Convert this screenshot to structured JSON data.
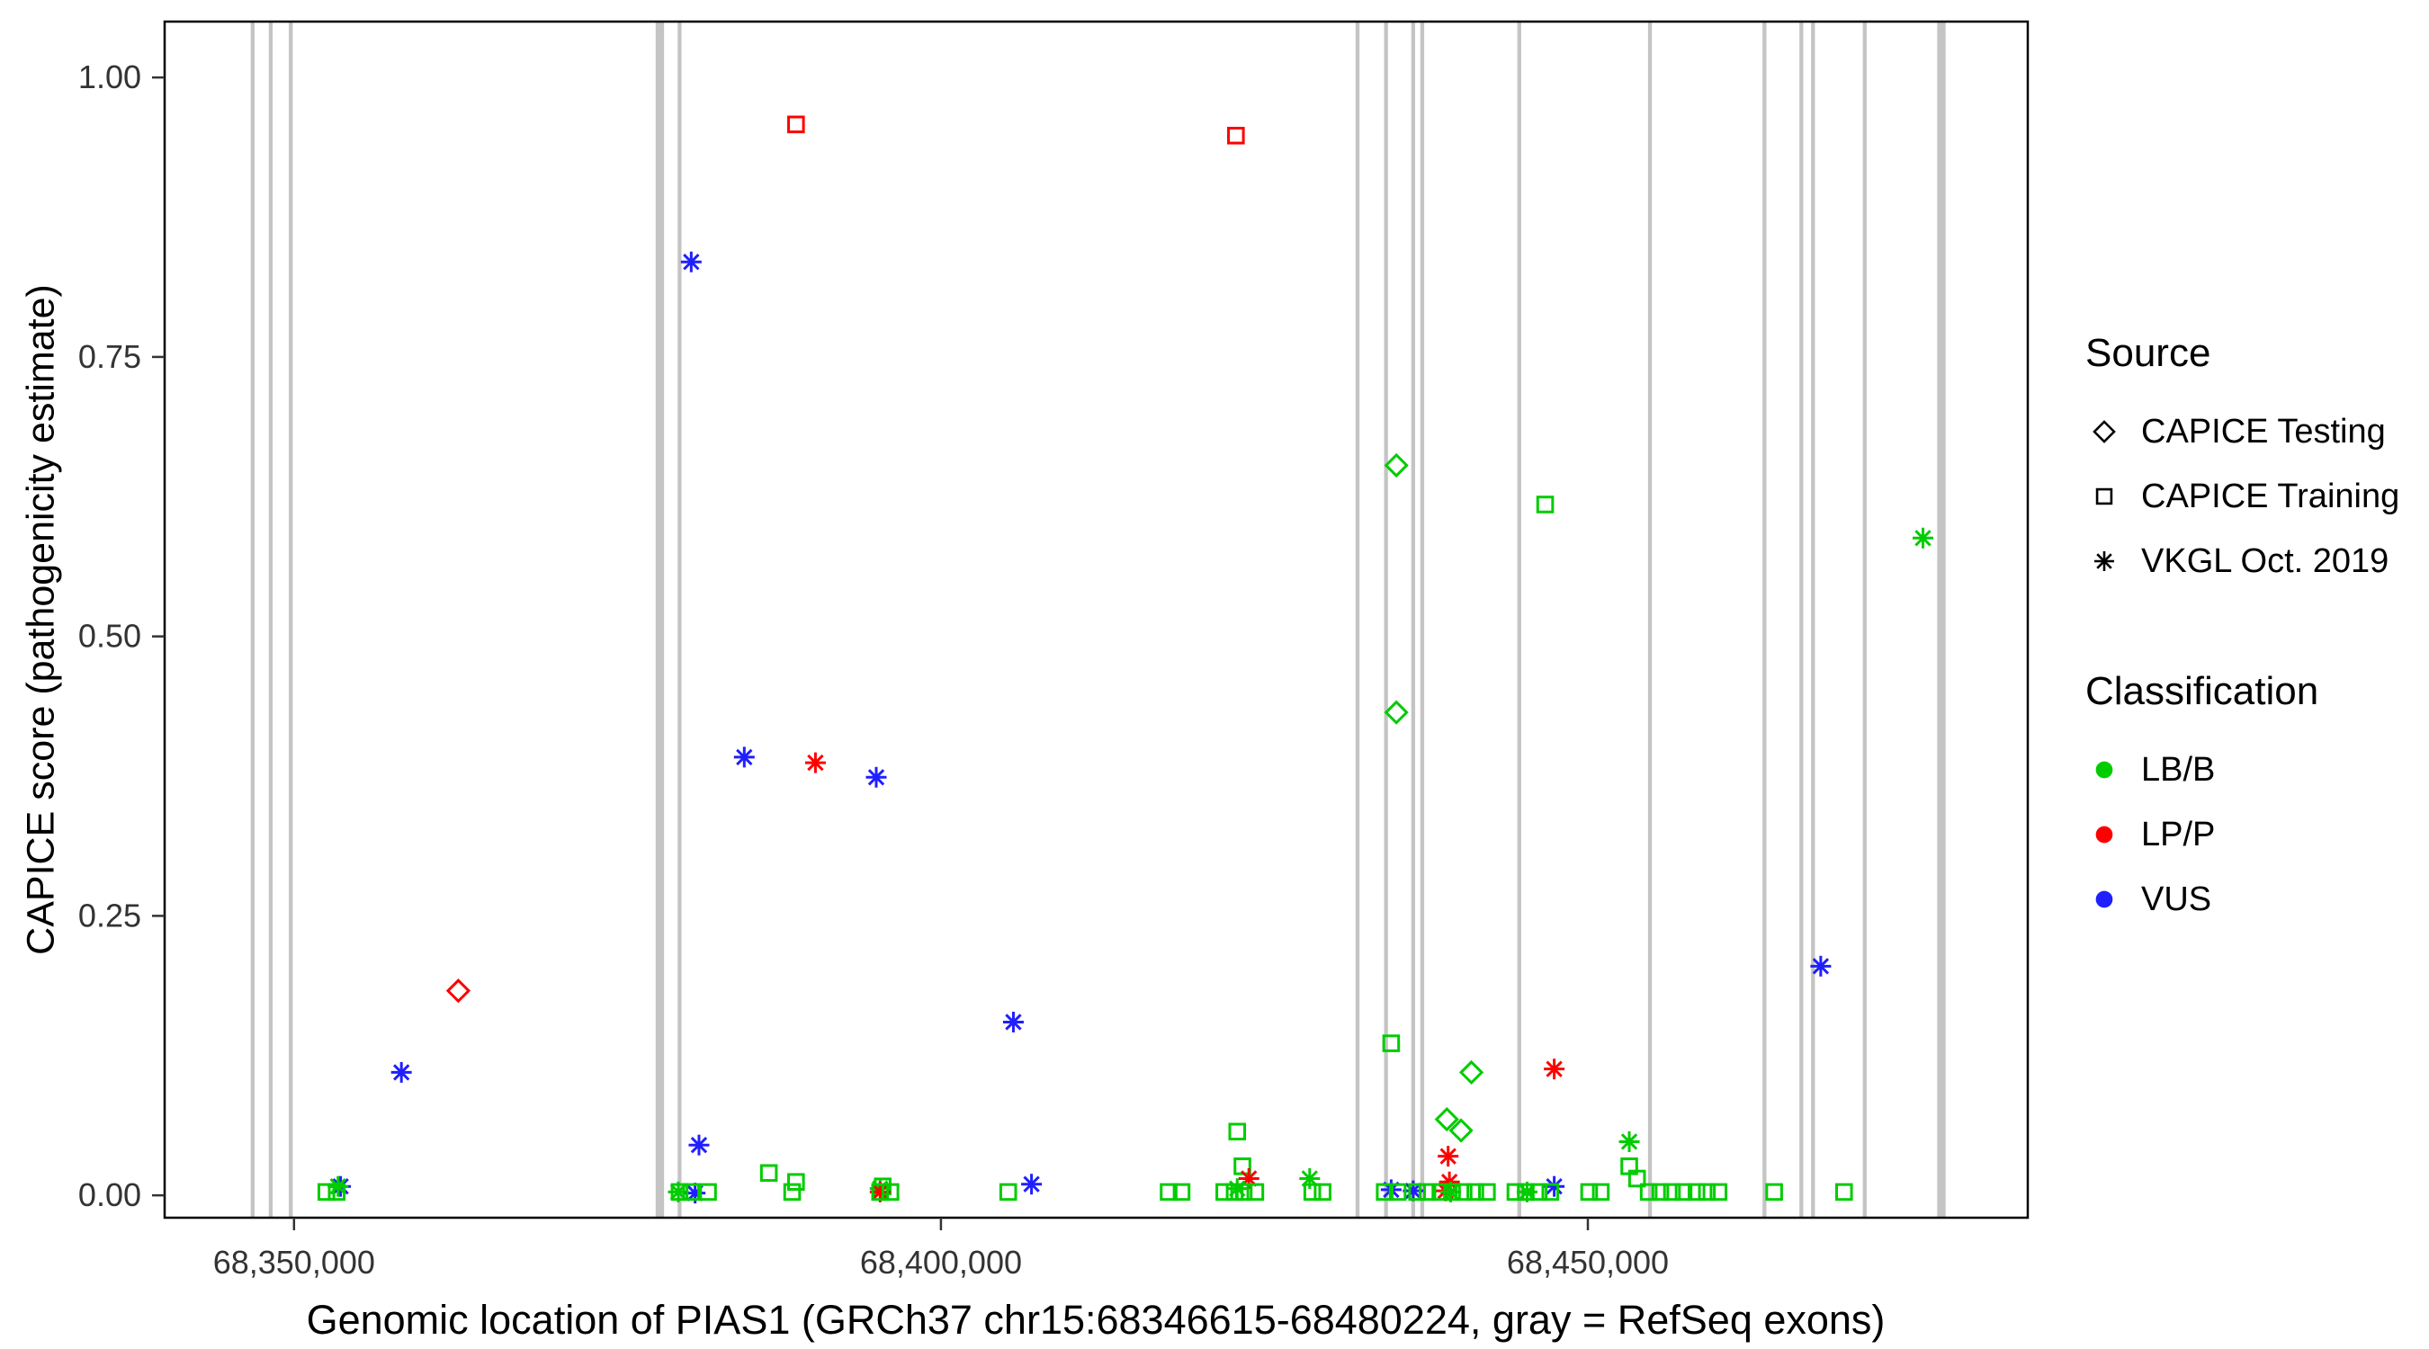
{
  "figure": {
    "background": "#FFFFFF",
    "panel_border_color": "#000000",
    "exon_color": "#C4C4C4",
    "axis_text_color": "#333333",
    "title_color": "#000000"
  },
  "chart_data": {
    "type": "scatter",
    "title": "",
    "xlabel": "Genomic location of PIAS1 (GRCh37 chr15:68346615-68480224, gray = RefSeq exons)",
    "ylabel": "CAPICE score (pathogenicity estimate)",
    "xlim": [
      68340000,
      68484000
    ],
    "ylim": [
      -0.02,
      1.05
    ],
    "grid": false,
    "legend_position": "right",
    "x_ticks": [
      {
        "value": 68350000,
        "label": "68,350,000"
      },
      {
        "value": 68400000,
        "label": "68,400,000"
      },
      {
        "value": 68450000,
        "label": "68,450,000"
      }
    ],
    "y_ticks": [
      {
        "value": 0.0,
        "label": "0.00"
      },
      {
        "value": 0.25,
        "label": "0.25"
      },
      {
        "value": 0.5,
        "label": "0.50"
      },
      {
        "value": 0.75,
        "label": "0.75"
      },
      {
        "value": 1.0,
        "label": "1.00"
      }
    ],
    "shape_map": {
      "CAPICE Testing": "diamond",
      "CAPICE Training": "square",
      "VKGL Oct. 2019": "asterisk"
    },
    "color_map": {
      "LB/B": "#00CC00",
      "LP/P": "#FF0000",
      "VUS": "#1F1FFF"
    },
    "refseq_exons": [
      [
        68346650,
        68346950
      ],
      [
        68348050,
        68348350
      ],
      [
        68349600,
        68349900
      ],
      [
        68377950,
        68378600
      ],
      [
        68379650,
        68379950
      ],
      [
        68432050,
        68432350
      ],
      [
        68434250,
        68434550
      ],
      [
        68436350,
        68436650
      ],
      [
        68437050,
        68437350
      ],
      [
        68444550,
        68444850
      ],
      [
        68454650,
        68454950
      ],
      [
        68463500,
        68463800
      ],
      [
        68466350,
        68466650
      ],
      [
        68467250,
        68467550
      ],
      [
        68471250,
        68471550
      ],
      [
        68477000,
        68477650
      ]
    ],
    "points": [
      {
        "x": 68388800,
        "y": 0.958,
        "source": "CAPICE Training",
        "classification": "LP/P"
      },
      {
        "x": 68422800,
        "y": 0.948,
        "source": "CAPICE Training",
        "classification": "LP/P"
      },
      {
        "x": 68380700,
        "y": 0.835,
        "source": "VKGL Oct. 2019",
        "classification": "VUS"
      },
      {
        "x": 68435200,
        "y": 0.653,
        "source": "CAPICE Testing",
        "classification": "LB/B"
      },
      {
        "x": 68446700,
        "y": 0.618,
        "source": "CAPICE Training",
        "classification": "LB/B"
      },
      {
        "x": 68475900,
        "y": 0.588,
        "source": "VKGL Oct. 2019",
        "classification": "LB/B"
      },
      {
        "x": 68435200,
        "y": 0.432,
        "source": "CAPICE Testing",
        "classification": "LB/B"
      },
      {
        "x": 68384800,
        "y": 0.392,
        "source": "VKGL Oct. 2019",
        "classification": "VUS"
      },
      {
        "x": 68390300,
        "y": 0.387,
        "source": "VKGL Oct. 2019",
        "classification": "LP/P"
      },
      {
        "x": 68395000,
        "y": 0.374,
        "source": "VKGL Oct. 2019",
        "classification": "VUS"
      },
      {
        "x": 68468000,
        "y": 0.205,
        "source": "VKGL Oct. 2019",
        "classification": "VUS"
      },
      {
        "x": 68362700,
        "y": 0.183,
        "source": "CAPICE Testing",
        "classification": "LP/P"
      },
      {
        "x": 68405600,
        "y": 0.155,
        "source": "VKGL Oct. 2019",
        "classification": "VUS"
      },
      {
        "x": 68434800,
        "y": 0.136,
        "source": "CAPICE Training",
        "classification": "LB/B"
      },
      {
        "x": 68447400,
        "y": 0.113,
        "source": "VKGL Oct. 2019",
        "classification": "LP/P"
      },
      {
        "x": 68441000,
        "y": 0.11,
        "source": "CAPICE Testing",
        "classification": "LB/B"
      },
      {
        "x": 68358300,
        "y": 0.11,
        "source": "VKGL Oct. 2019",
        "classification": "VUS"
      },
      {
        "x": 68439100,
        "y": 0.068,
        "source": "CAPICE Testing",
        "classification": "LB/B"
      },
      {
        "x": 68440200,
        "y": 0.058,
        "source": "CAPICE Testing",
        "classification": "LB/B"
      },
      {
        "x": 68422900,
        "y": 0.057,
        "source": "CAPICE Training",
        "classification": "LB/B"
      },
      {
        "x": 68453200,
        "y": 0.048,
        "source": "VKGL Oct. 2019",
        "classification": "LB/B"
      },
      {
        "x": 68381300,
        "y": 0.045,
        "source": "VKGL Oct. 2019",
        "classification": "VUS"
      },
      {
        "x": 68439200,
        "y": 0.035,
        "source": "VKGL Oct. 2019",
        "classification": "LP/P"
      },
      {
        "x": 68423300,
        "y": 0.026,
        "source": "CAPICE Training",
        "classification": "LB/B"
      },
      {
        "x": 68453200,
        "y": 0.026,
        "source": "CAPICE Training",
        "classification": "LB/B"
      },
      {
        "x": 68386700,
        "y": 0.02,
        "source": "CAPICE Training",
        "classification": "LB/B"
      },
      {
        "x": 68423800,
        "y": 0.015,
        "source": "VKGL Oct. 2019",
        "classification": "LP/P"
      },
      {
        "x": 68428500,
        "y": 0.015,
        "source": "VKGL Oct. 2019",
        "classification": "LB/B"
      },
      {
        "x": 68453800,
        "y": 0.015,
        "source": "CAPICE Training",
        "classification": "LB/B"
      },
      {
        "x": 68388800,
        "y": 0.012,
        "source": "CAPICE Training",
        "classification": "LB/B"
      },
      {
        "x": 68439300,
        "y": 0.012,
        "source": "VKGL Oct. 2019",
        "classification": "LP/P"
      },
      {
        "x": 68407000,
        "y": 0.01,
        "source": "VKGL Oct. 2019",
        "classification": "VUS"
      },
      {
        "x": 68353600,
        "y": 0.008,
        "source": "VKGL Oct. 2019",
        "classification": "VUS"
      },
      {
        "x": 68353400,
        "y": 0.008,
        "source": "VKGL Oct. 2019",
        "classification": "LB/B"
      },
      {
        "x": 68395500,
        "y": 0.008,
        "source": "CAPICE Training",
        "classification": "LB/B"
      },
      {
        "x": 68447400,
        "y": 0.008,
        "source": "VKGL Oct. 2019",
        "classification": "VUS"
      },
      {
        "x": 68395300,
        "y": 0.006,
        "source": "VKGL Oct. 2019",
        "classification": "LB/B"
      },
      {
        "x": 68422900,
        "y": 0.006,
        "source": "VKGL Oct. 2019",
        "classification": "LB/B"
      },
      {
        "x": 68434800,
        "y": 0.005,
        "source": "VKGL Oct. 2019",
        "classification": "VUS"
      },
      {
        "x": 68436500,
        "y": 0.004,
        "source": "VKGL Oct. 2019",
        "classification": "VUS"
      },
      {
        "x": 68439000,
        "y": 0.004,
        "source": "VKGL Oct. 2019",
        "classification": "LP/P"
      },
      {
        "x": 68395300,
        "y": 0.003,
        "source": "VKGL Oct. 2019",
        "classification": "LP/P"
      },
      {
        "x": 68379700,
        "y": 0.003,
        "source": "VKGL Oct. 2019",
        "classification": "LB/B"
      },
      {
        "x": 68439400,
        "y": 0.003,
        "source": "VKGL Oct. 2019",
        "classification": "LB/B"
      },
      {
        "x": 68445300,
        "y": 0.003,
        "source": "VKGL Oct. 2019",
        "classification": "LB/B"
      },
      {
        "x": 68381000,
        "y": 0.002,
        "source": "VKGL Oct. 2019",
        "classification": "VUS"
      },
      {
        "x": 68352500,
        "y": 0.003,
        "source": "CAPICE Training",
        "classification": "LB/B"
      },
      {
        "x": 68353300,
        "y": 0.003,
        "source": "CAPICE Training",
        "classification": "LB/B"
      },
      {
        "x": 68379800,
        "y": 0.003,
        "source": "CAPICE Training",
        "classification": "LB/B"
      },
      {
        "x": 68380700,
        "y": 0.003,
        "source": "CAPICE Training",
        "classification": "LB/B"
      },
      {
        "x": 68382000,
        "y": 0.003,
        "source": "CAPICE Training",
        "classification": "LB/B"
      },
      {
        "x": 68388500,
        "y": 0.003,
        "source": "CAPICE Training",
        "classification": "LB/B"
      },
      {
        "x": 68395300,
        "y": 0.003,
        "source": "CAPICE Training",
        "classification": "LB/B"
      },
      {
        "x": 68396100,
        "y": 0.003,
        "source": "CAPICE Training",
        "classification": "LB/B"
      },
      {
        "x": 68405200,
        "y": 0.003,
        "source": "CAPICE Training",
        "classification": "LB/B"
      },
      {
        "x": 68417600,
        "y": 0.003,
        "source": "CAPICE Training",
        "classification": "LB/B"
      },
      {
        "x": 68418600,
        "y": 0.003,
        "source": "CAPICE Training",
        "classification": "LB/B"
      },
      {
        "x": 68421900,
        "y": 0.003,
        "source": "CAPICE Training",
        "classification": "LB/B"
      },
      {
        "x": 68422700,
        "y": 0.003,
        "source": "CAPICE Training",
        "classification": "LB/B"
      },
      {
        "x": 68423400,
        "y": 0.003,
        "source": "CAPICE Training",
        "classification": "LB/B"
      },
      {
        "x": 68424300,
        "y": 0.003,
        "source": "CAPICE Training",
        "classification": "LB/B"
      },
      {
        "x": 68428700,
        "y": 0.003,
        "source": "CAPICE Training",
        "classification": "LB/B"
      },
      {
        "x": 68429500,
        "y": 0.003,
        "source": "CAPICE Training",
        "classification": "LB/B"
      },
      {
        "x": 68434300,
        "y": 0.003,
        "source": "CAPICE Training",
        "classification": "LB/B"
      },
      {
        "x": 68435300,
        "y": 0.003,
        "source": "CAPICE Training",
        "classification": "LB/B"
      },
      {
        "x": 68436800,
        "y": 0.003,
        "source": "CAPICE Training",
        "classification": "LB/B"
      },
      {
        "x": 68437600,
        "y": 0.003,
        "source": "CAPICE Training",
        "classification": "LB/B"
      },
      {
        "x": 68438600,
        "y": 0.003,
        "source": "CAPICE Training",
        "classification": "LB/B"
      },
      {
        "x": 68439500,
        "y": 0.003,
        "source": "CAPICE Training",
        "classification": "LB/B"
      },
      {
        "x": 68440400,
        "y": 0.003,
        "source": "CAPICE Training",
        "classification": "LB/B"
      },
      {
        "x": 68441300,
        "y": 0.003,
        "source": "CAPICE Training",
        "classification": "LB/B"
      },
      {
        "x": 68442200,
        "y": 0.003,
        "source": "CAPICE Training",
        "classification": "LB/B"
      },
      {
        "x": 68444400,
        "y": 0.003,
        "source": "CAPICE Training",
        "classification": "LB/B"
      },
      {
        "x": 68445200,
        "y": 0.003,
        "source": "CAPICE Training",
        "classification": "LB/B"
      },
      {
        "x": 68446200,
        "y": 0.003,
        "source": "CAPICE Training",
        "classification": "LB/B"
      },
      {
        "x": 68447100,
        "y": 0.003,
        "source": "CAPICE Training",
        "classification": "LB/B"
      },
      {
        "x": 68450100,
        "y": 0.003,
        "source": "CAPICE Training",
        "classification": "LB/B"
      },
      {
        "x": 68451000,
        "y": 0.003,
        "source": "CAPICE Training",
        "classification": "LB/B"
      },
      {
        "x": 68454700,
        "y": 0.003,
        "source": "CAPICE Training",
        "classification": "LB/B"
      },
      {
        "x": 68455600,
        "y": 0.003,
        "source": "CAPICE Training",
        "classification": "LB/B"
      },
      {
        "x": 68456500,
        "y": 0.003,
        "source": "CAPICE Training",
        "classification": "LB/B"
      },
      {
        "x": 68457400,
        "y": 0.003,
        "source": "CAPICE Training",
        "classification": "LB/B"
      },
      {
        "x": 68458400,
        "y": 0.003,
        "source": "CAPICE Training",
        "classification": "LB/B"
      },
      {
        "x": 68459200,
        "y": 0.003,
        "source": "CAPICE Training",
        "classification": "LB/B"
      },
      {
        "x": 68460100,
        "y": 0.003,
        "source": "CAPICE Training",
        "classification": "LB/B"
      },
      {
        "x": 68464400,
        "y": 0.003,
        "source": "CAPICE Training",
        "classification": "LB/B"
      },
      {
        "x": 68469800,
        "y": 0.003,
        "source": "CAPICE Training",
        "classification": "LB/B"
      }
    ]
  },
  "legend": {
    "source": {
      "title": "Source",
      "items": [
        {
          "label": "CAPICE Testing",
          "shape": "diamond"
        },
        {
          "label": "CAPICE Training",
          "shape": "square"
        },
        {
          "label": "VKGL Oct. 2019",
          "shape": "asterisk"
        }
      ]
    },
    "classification": {
      "title": "Classification",
      "items": [
        {
          "label": "LB/B",
          "color": "#00CC00"
        },
        {
          "label": "LP/P",
          "color": "#FF0000"
        },
        {
          "label": "VUS",
          "color": "#1F1FFF"
        }
      ]
    }
  }
}
